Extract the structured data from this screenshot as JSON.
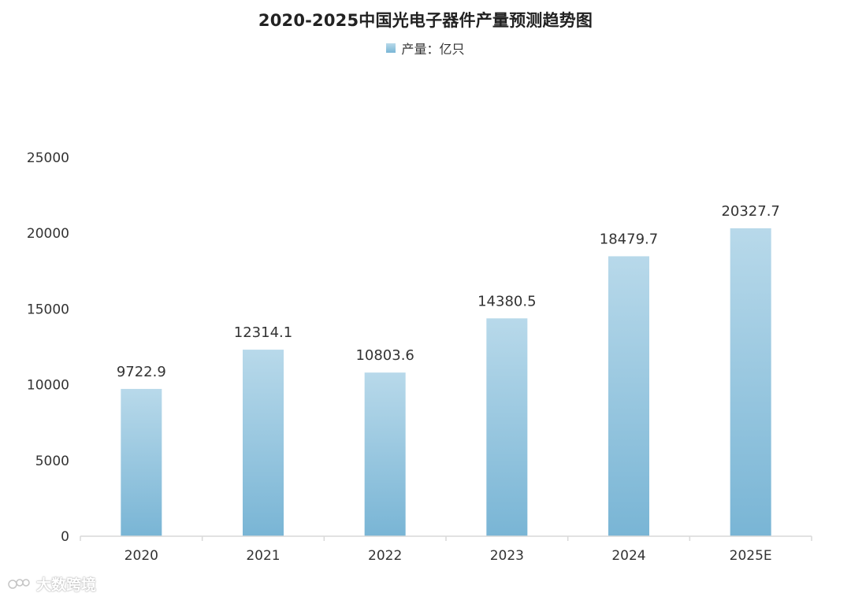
{
  "chart_data": {
    "type": "bar",
    "title": "2020-2025中国光电子器件产量预测趋势图",
    "categories": [
      "2020",
      "2021",
      "2022",
      "2023",
      "2024",
      "2025E"
    ],
    "series": [
      {
        "name": "产量：亿只",
        "values": [
          9722.9,
          12314.1,
          10803.6,
          14380.5,
          18479.7,
          20327.7
        ],
        "data_labels": [
          "9722.9",
          "12314.1",
          "10803.6",
          "14380.5",
          "18479.7",
          "20327.7"
        ]
      }
    ],
    "y_ticks": [
      "0",
      "5000",
      "10000",
      "15000",
      "20000",
      "25000"
    ],
    "ylim": [
      0,
      25000
    ],
    "xlabel": "",
    "ylabel": "",
    "legend_position": "top-center",
    "grid": false,
    "colors": {
      "bar_top": "#b8d9ea",
      "bar_bottom": "#79b5d5",
      "axis": "#d9d9d9"
    }
  },
  "watermark": {
    "text": "大数跨境"
  }
}
